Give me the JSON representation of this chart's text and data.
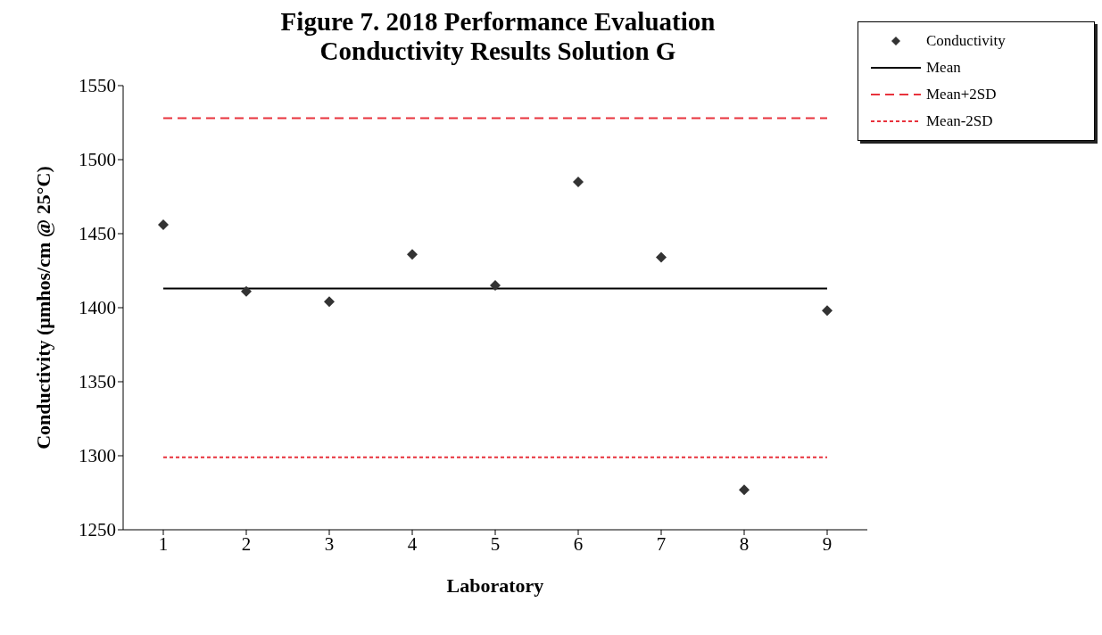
{
  "chart_data": {
    "type": "scatter",
    "title": "Figure 7. 2018 Performance Evaluation\nConductivity Results Solution G",
    "xlabel": "Laboratory",
    "ylabel": "Conductivity (µmhos/cm @ 25°C)",
    "categories": [
      "1",
      "2",
      "3",
      "4",
      "5",
      "6",
      "7",
      "8",
      "9"
    ],
    "series": [
      {
        "name": "Conductivity",
        "color": "#333333",
        "marker": "diamond",
        "values": [
          1456,
          1411,
          1404,
          1436,
          1415,
          1485,
          1434,
          1277,
          1398
        ]
      },
      {
        "name": "Mean",
        "type": "line",
        "color": "#000000",
        "line_style": "solid",
        "marker": "none",
        "values": [
          1413,
          1413,
          1413,
          1413,
          1413,
          1413,
          1413,
          1413,
          1413
        ]
      },
      {
        "name": "Mean+2SD",
        "type": "line",
        "color": "#e8323c",
        "line_style": "dashed",
        "marker": "none",
        "values": [
          1528,
          1528,
          1528,
          1528,
          1528,
          1528,
          1528,
          1528,
          1528
        ]
      },
      {
        "name": "Mean-2SD",
        "type": "line",
        "color": "#e8323c",
        "line_style": "dotted",
        "marker": "none",
        "values": [
          1299,
          1299,
          1299,
          1299,
          1299,
          1299,
          1299,
          1299,
          1299
        ]
      }
    ],
    "ylim": [
      1250,
      1550
    ],
    "yticks": [
      1250,
      1300,
      1350,
      1400,
      1450,
      1500,
      1550
    ],
    "grid": false,
    "legend": "top right"
  }
}
